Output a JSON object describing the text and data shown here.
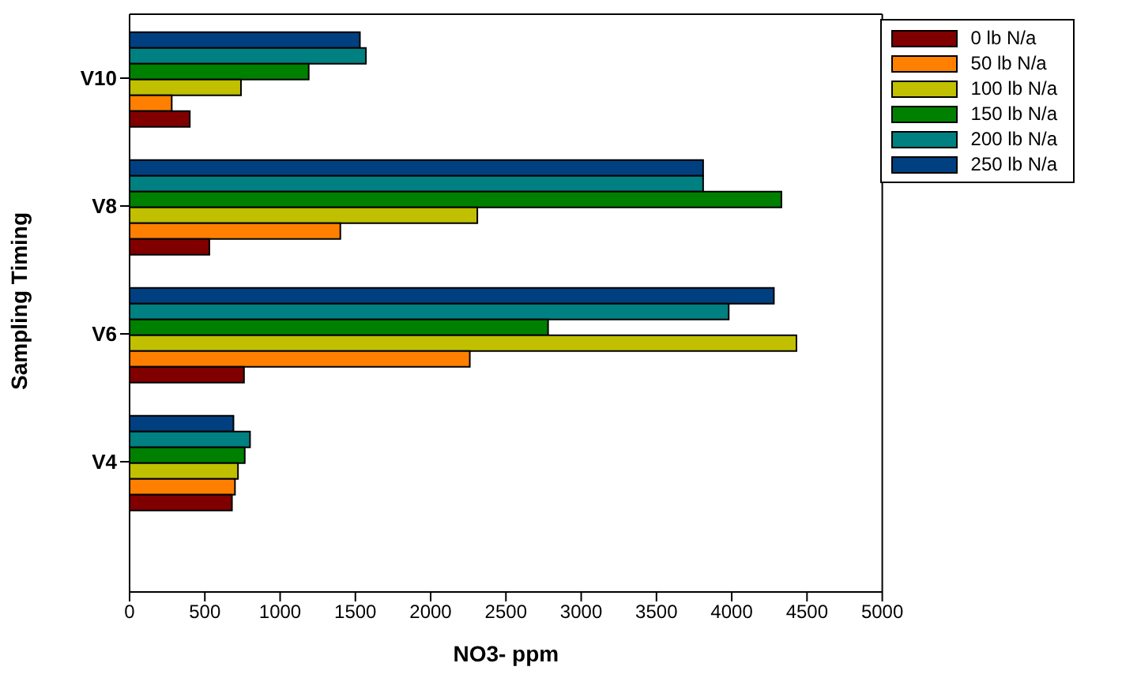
{
  "chart_data": {
    "type": "bar",
    "orientation": "horizontal",
    "xlabel": "NO3- ppm",
    "ylabel": "Sampling Timing",
    "categories": [
      "V10",
      "V8",
      "V6",
      "V4"
    ],
    "xlim": [
      0,
      5000
    ],
    "xticks": [
      0,
      500,
      1000,
      1500,
      2000,
      2500,
      3000,
      3500,
      4000,
      4500,
      5000
    ],
    "legend": "top right",
    "series": [
      {
        "name": "0 lb N/a",
        "color": "#800000",
        "values": [
          400,
          530,
          760,
          680
        ]
      },
      {
        "name": "50 lb N/a",
        "color": "#ff8000",
        "values": [
          280,
          1400,
          2260,
          700
        ]
      },
      {
        "name": "100 lb N/a",
        "color": "#c0c000",
        "values": [
          740,
          2310,
          4430,
          720
        ]
      },
      {
        "name": "150 lb N/a",
        "color": "#008000",
        "values": [
          1190,
          4330,
          2780,
          765
        ]
      },
      {
        "name": "200 lb N/a",
        "color": "#008080",
        "values": [
          1570,
          3810,
          3980,
          800
        ]
      },
      {
        "name": "250 lb N/a",
        "color": "#004080",
        "values": [
          1530,
          3810,
          4280,
          690
        ]
      }
    ]
  }
}
